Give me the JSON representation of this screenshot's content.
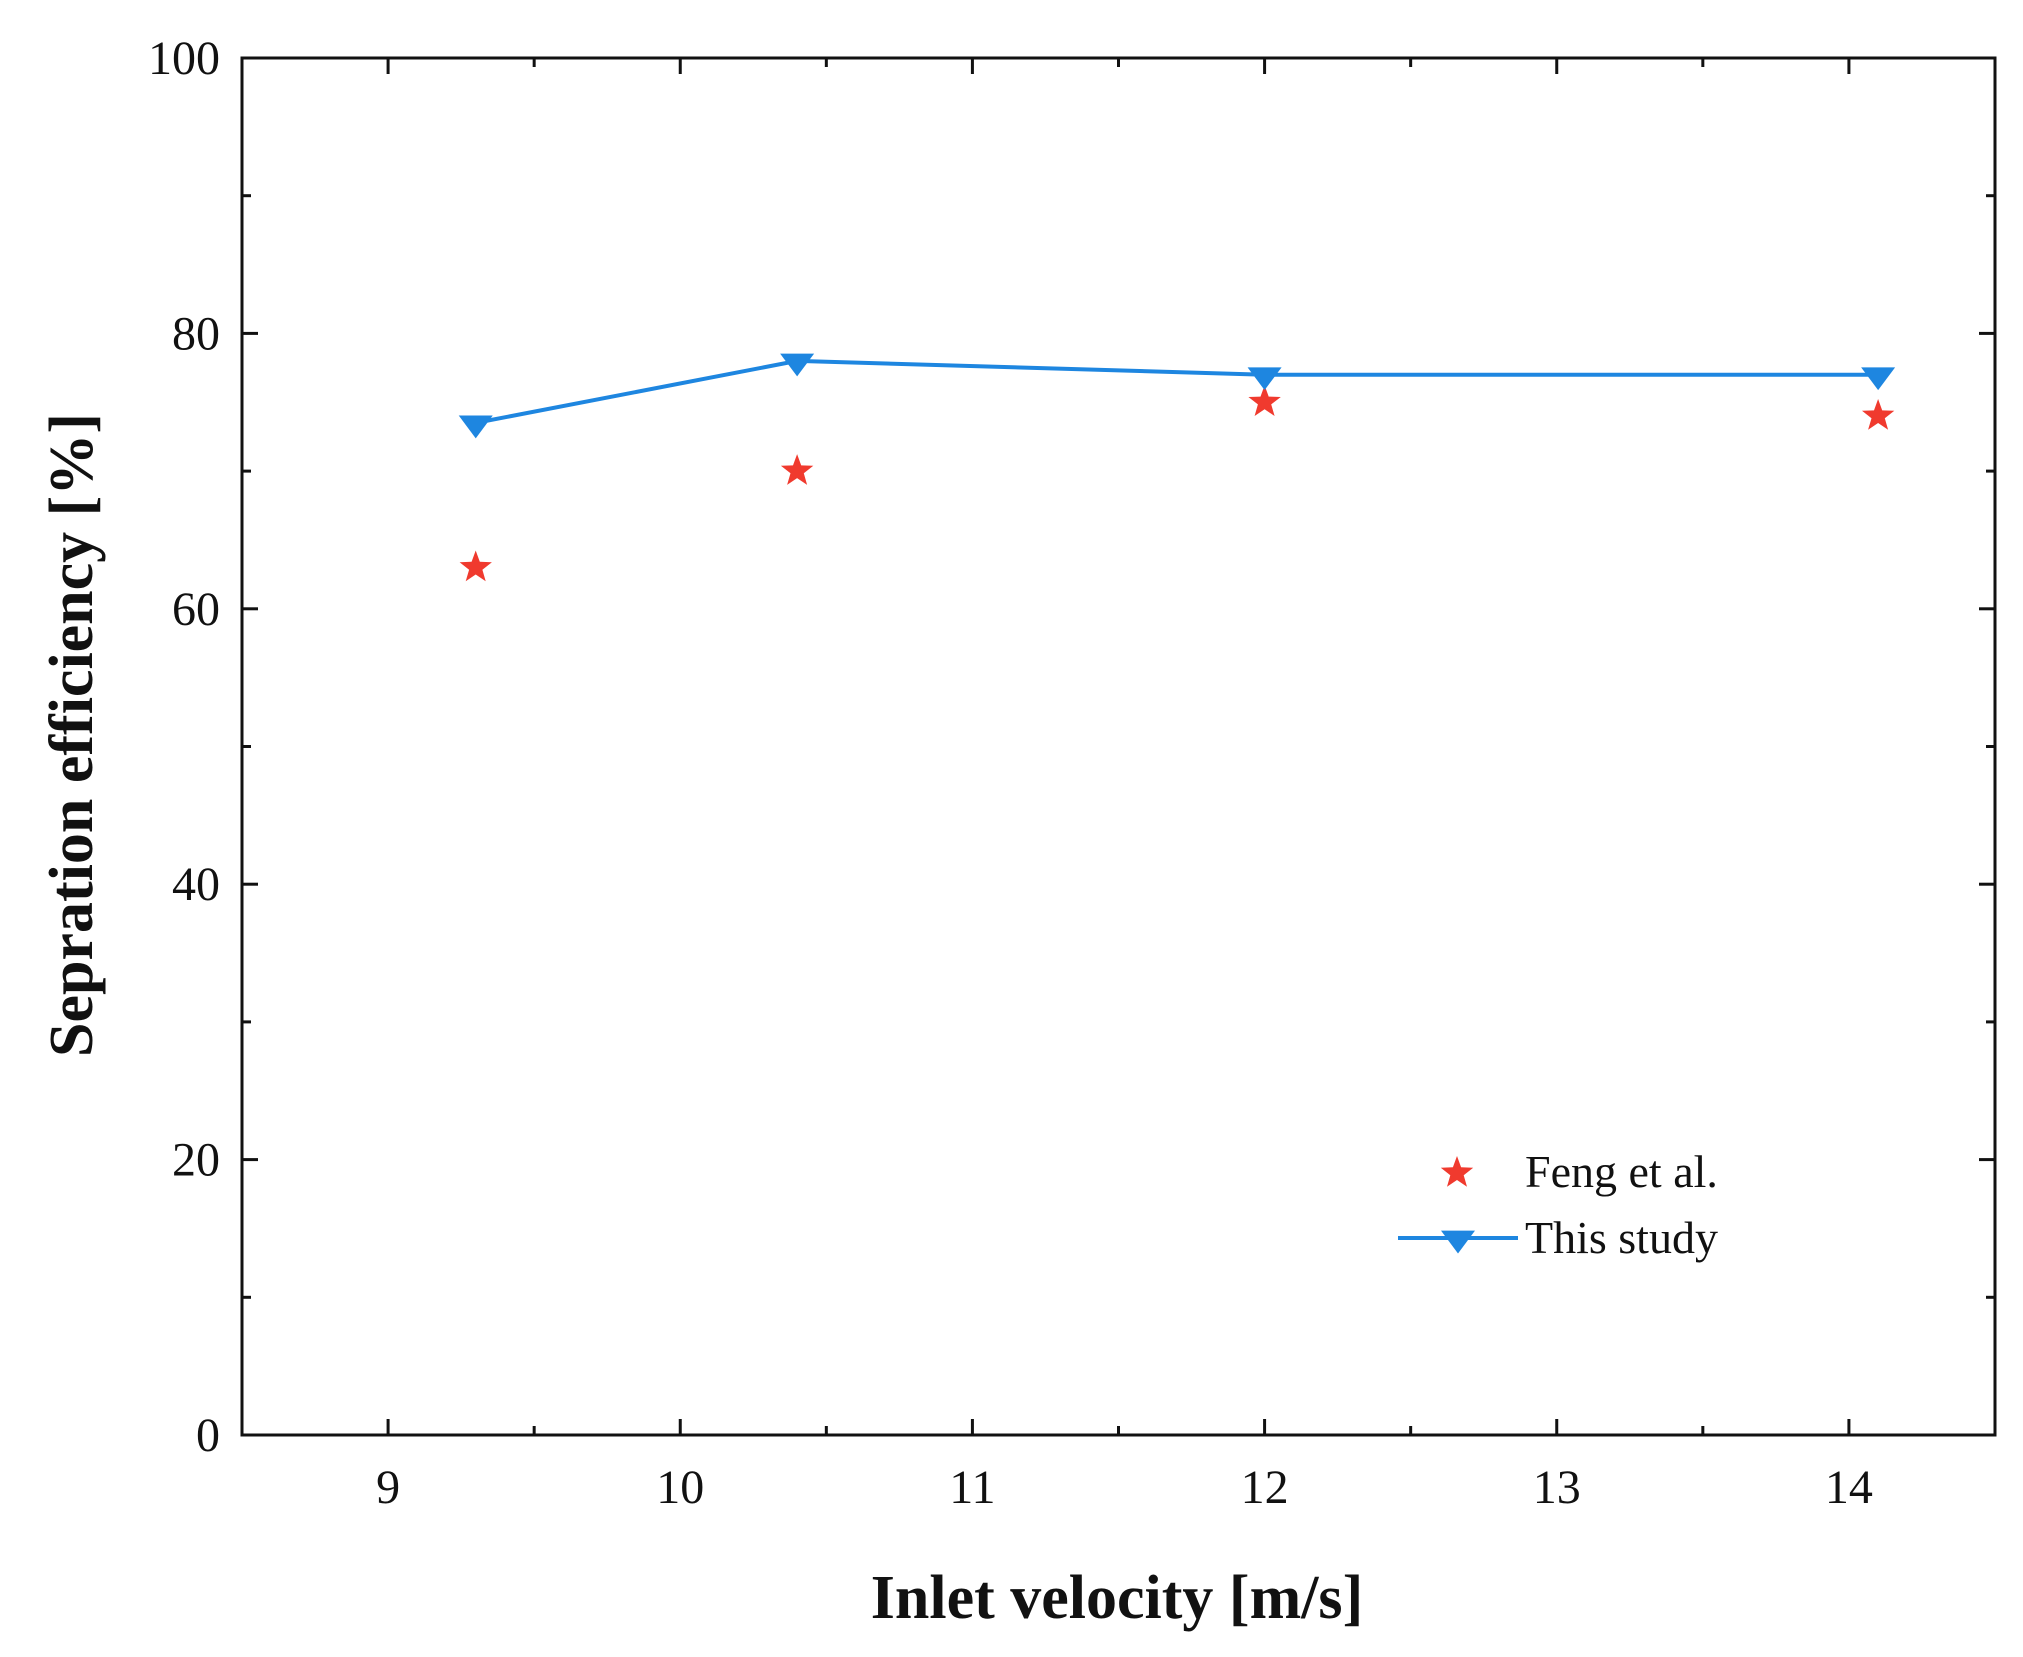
{
  "chart_data": {
    "type": "line",
    "title": "",
    "xlabel": "Inlet velocity [m/s]",
    "ylabel": "Sepration efficiency [%]",
    "xlim": [
      8.5,
      14.5
    ],
    "ylim": [
      0,
      100
    ],
    "xticks": [
      9,
      10,
      11,
      12,
      13,
      14
    ],
    "xtick_labels": [
      "9",
      "10",
      "11",
      "12",
      "13",
      "14"
    ],
    "yticks": [
      0,
      20,
      40,
      60,
      80,
      100
    ],
    "ytick_labels": [
      "0",
      "20",
      "40",
      "60",
      "80",
      "100"
    ],
    "grid": false,
    "legend_position": "bottom-right",
    "series": [
      {
        "name": "Feng et al.",
        "style": "scatter",
        "marker": "star",
        "color": "#f03a2e",
        "x": [
          9.3,
          10.4,
          12.0,
          14.1
        ],
        "values": [
          63,
          70,
          75,
          74
        ]
      },
      {
        "name": "This study",
        "style": "line",
        "marker": "triangle-down",
        "color": "#1e86e0",
        "x": [
          9.3,
          10.4,
          12.0,
          14.1
        ],
        "values": [
          73.5,
          78,
          77,
          77
        ]
      }
    ]
  }
}
